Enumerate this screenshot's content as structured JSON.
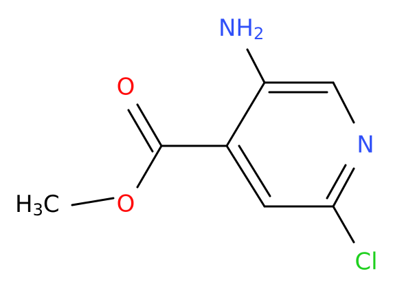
{
  "molecule": {
    "atoms": {
      "amine": {
        "text": "NH",
        "sub": "2"
      },
      "ring_nitrogen": {
        "text": "N"
      },
      "carbonyl_oxygen": {
        "text": "O"
      },
      "ester_oxygen": {
        "text": "O"
      },
      "methyl": {
        "text": "H",
        "sub": "3",
        "tail": "C"
      },
      "chlorine": {
        "text": "Cl"
      }
    }
  }
}
